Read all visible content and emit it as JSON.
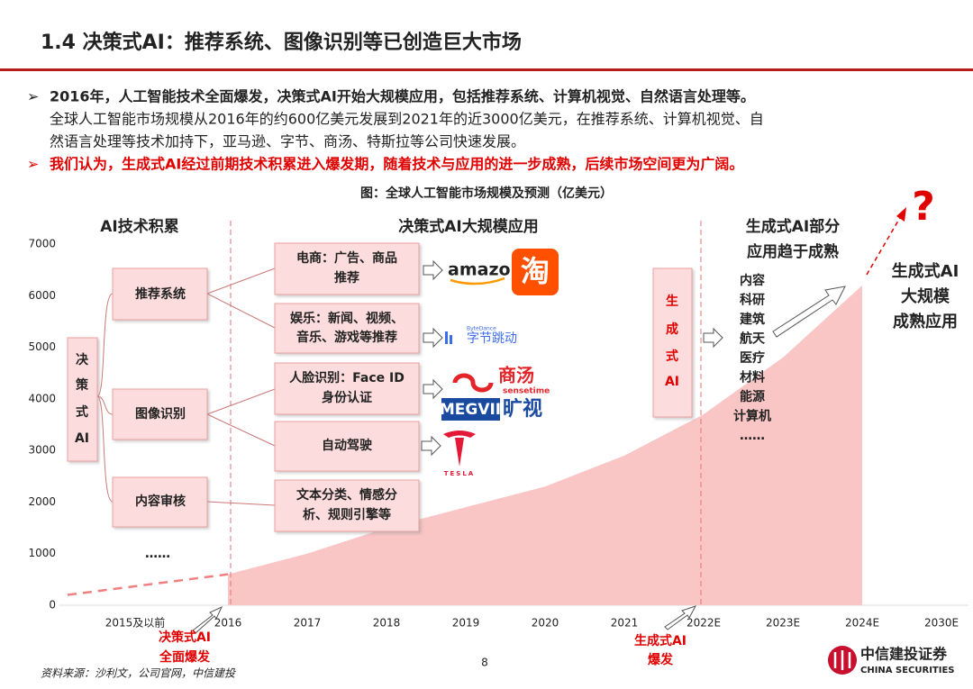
{
  "title": "1.4 决策式AI：推荐系统、图像识别等已创造巨大市场",
  "bullets": [
    {
      "lead": "2016年，人工智能技术全面爆发，决策式AI开始大规模应用，包括推荐系统、计算机视觉、自然语言处理等。",
      "text": [
        "全球人工智能市场规模从2016年的约600亿美元发展到2021年的近3000亿美元，在推荐系统、计算机视觉、自",
        "然语言处理等技术加持下，亚马逊、字节、商汤、特斯拉等公司快速发展。"
      ]
    },
    {
      "lead": "我们认为，生成式AI经过前期技术积累进入爆发期，随着技术与应用的进一步成熟，后续市场空间更为广阔。"
    }
  ],
  "chart_data": {
    "type": "area",
    "title": "图：全球人工智能市场规模及预测（亿美元）",
    "categories": [
      "2015及以前",
      "2016",
      "2017",
      "2018",
      "2019",
      "2020",
      "2021",
      "2022E",
      "2023E",
      "2024E",
      "2030E"
    ],
    "values": [
      200,
      600,
      1000,
      1500,
      1900,
      2300,
      2900,
      3700,
      4800,
      6200,
      null
    ],
    "color": "#f9c5c5",
    "ylim": [
      0,
      7000
    ],
    "yticks": [
      0,
      1000,
      2000,
      3000,
      4000,
      5000,
      6000,
      7000
    ]
  },
  "diagram": {
    "phases": [
      [
        "AI技术积累"
      ],
      [
        "决策式AI大规模应用"
      ],
      [
        "生成式AI部分",
        "应用趋于成熟"
      ]
    ],
    "root": [
      "决",
      "策",
      "式",
      "AI"
    ],
    "branches": [
      "推荐系统",
      "图像识别",
      "内容审核",
      "……"
    ],
    "apps": [
      [
        "电商：广告、商品",
        "推荐"
      ],
      [
        "娱乐：新闻、视频、",
        "音乐、游戏等推荐"
      ],
      [
        "人脸识别：Face ID",
        "身份认证"
      ],
      [
        "自动驾驶"
      ],
      [
        "文本分类、情感分",
        "析、规则引擎等"
      ]
    ],
    "logos": [
      "amazon",
      "淘",
      "ByteDance",
      "字节跳动",
      "商汤",
      "sensetime",
      "MEGVII",
      "旷视",
      "TESLA"
    ],
    "gen": [
      "生",
      "成",
      "式",
      "AI"
    ],
    "fields": [
      "内容",
      "科研",
      "建筑",
      "航天",
      "医疗",
      "材料",
      "能源",
      "计算机",
      "……"
    ],
    "future": [
      "生成式AI",
      "大规模",
      "成熟应用"
    ],
    "question": "?",
    "milestones": [
      [
        "决策式AI",
        "全面爆发"
      ],
      [
        "生成式AI",
        "爆发"
      ]
    ]
  },
  "source": "资料来源：沙利文，公司官网，中信建投",
  "page_number": "8",
  "logo": [
    "中信建投证券",
    "CHINA SECURITIES"
  ]
}
